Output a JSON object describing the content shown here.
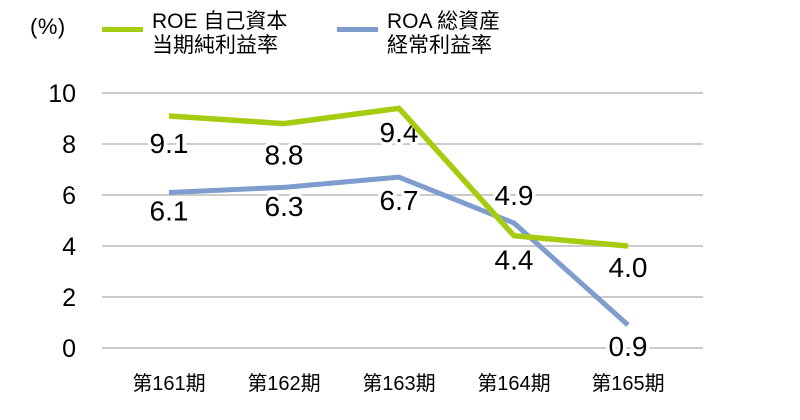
{
  "unit_label": "(%)",
  "colors": {
    "roe": "#a6cc12",
    "roa": "#7e9ccd",
    "grid": "#cbcbcb",
    "text": "#000000"
  },
  "chart_data": {
    "type": "line",
    "title": "",
    "xlabel": "",
    "ylabel": "(%)",
    "ylim": [
      0,
      10
    ],
    "yticks": [
      0,
      2,
      4,
      6,
      8,
      10
    ],
    "grid": true,
    "legend_position": "top",
    "categories": [
      "第161期",
      "第162期",
      "第163期",
      "第164期",
      "第165期"
    ],
    "series": [
      {
        "key": "roe",
        "name": "ROE 自己資本当期純利益率",
        "legend_lines": [
          "ROE 自己資本",
          "当期純利益率"
        ],
        "color": "#a6cc12",
        "values": [
          9.1,
          8.8,
          9.4,
          4.4,
          4.0
        ],
        "labels": [
          "9.1",
          "8.8",
          "9.4",
          "4.4",
          "4.0"
        ]
      },
      {
        "key": "roa",
        "name": "ROA 総資産経常利益率",
        "legend_lines": [
          "ROA 総資産",
          "経常利益率"
        ],
        "color": "#7e9ccd",
        "values": [
          6.1,
          6.3,
          6.7,
          4.9,
          0.9
        ],
        "labels": [
          "6.1",
          "6.3",
          "6.7",
          "4.9",
          "0.9"
        ]
      }
    ]
  }
}
